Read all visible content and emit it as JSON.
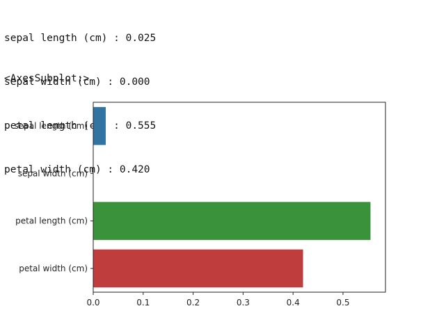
{
  "output_lines": [
    "sepal length (cm) : 0.025",
    "sepal width (cm) : 0.000",
    "petal length (cm) : 0.555",
    "petal width (cm) : 0.420"
  ],
  "repr_text": "<AxesSubplot:>",
  "chart_data": {
    "type": "bar",
    "orientation": "horizontal",
    "categories": [
      "sepal length (cm)",
      "sepal width (cm)",
      "petal length (cm)",
      "petal width (cm)"
    ],
    "values": [
      0.025,
      0.0,
      0.555,
      0.42
    ],
    "colors": [
      "#3274a1",
      "#e1812c",
      "#3a923a",
      "#c03d3e"
    ],
    "xlim": [
      0,
      0.585
    ],
    "xticks": [
      0.0,
      0.1,
      0.2,
      0.3,
      0.4,
      0.5
    ],
    "xtick_labels": [
      "0.0",
      "0.1",
      "0.2",
      "0.3",
      "0.4",
      "0.5"
    ],
    "title": "",
    "xlabel": "",
    "ylabel": "",
    "grid": false
  }
}
